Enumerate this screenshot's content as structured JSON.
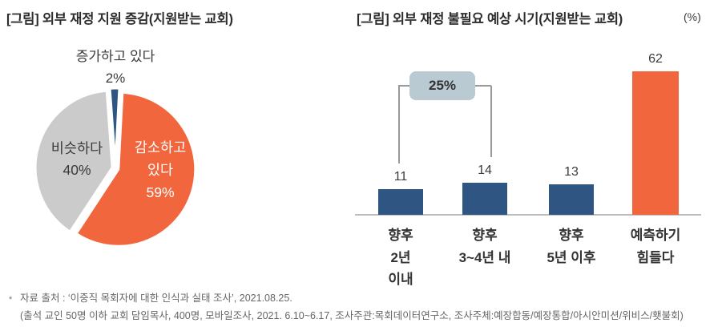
{
  "left_chart": {
    "title": "[그림] 외부 재정 지원 증감(지원받는 교회)"
  },
  "right_chart": {
    "title": "[그림] 외부 재정 불필요 예상 시기(지원받는 교회)",
    "unit_label": "(%)"
  },
  "footnote": {
    "marker": "*",
    "line1": "자료 출처 : ‘이중직 목회자에 대한 인식과 실태 조사’, 2021.08.25.",
    "line2": "(출석 교인 50명 이하 교회 담임목사, 400명, 모바일조사, 2021. 6.10~6.17, 조사주관:목회데이터연구소, 조사주체:예장합동/예장통합/아시안미션/위비스/횃불회)"
  },
  "colors": {
    "accent_orange": "#F2663E",
    "accent_navy": "#2F5583",
    "pie_gray": "#CBCBCB",
    "bracket_box": "#B9CAD3",
    "bracket_line": "#999999",
    "axis_line": "#BDBDBD",
    "title_text": "#2D2D2D",
    "body_text": "#3C3C3C",
    "footnote_text": "#666666"
  },
  "chart_data": [
    {
      "type": "pie",
      "title": "[그림] 외부 재정 지원 증감(지원받는 교회)",
      "unit": "%",
      "slices": [
        {
          "label": "감소하고 있다",
          "value": 59,
          "pct_label": "59%",
          "color": "#F2663E",
          "text_color": "#FFFFFF",
          "lines": [
            "감소하고",
            "있다",
            "59%"
          ]
        },
        {
          "label": "비슷하다",
          "value": 40,
          "pct_label": "40%",
          "color": "#CBCBCB",
          "text_color": "#3A3A3A",
          "lines": [
            "비슷하다",
            "40%"
          ]
        },
        {
          "label": "증가하고 있다",
          "value": 2,
          "pct_label": "2%",
          "color": "#2F5583",
          "text_color": "#3A3A3A",
          "lines": [
            "증가하고 있다",
            "2%"
          ]
        }
      ],
      "legend": "labels drawn on/above slices",
      "exploded": true
    },
    {
      "type": "bar",
      "title": "[그림] 외부 재정 불필요 예상 시기(지원받는 교회)",
      "unit": "(%)",
      "categories": [
        "향후 2년 이내",
        "향후 3~4년 내",
        "향후 5년 이후",
        "예측하기 힘들다"
      ],
      "category_lines": [
        [
          "향후",
          "2년",
          "이내"
        ],
        [
          "향후",
          "3~4년 내"
        ],
        [
          "향후",
          "5년 이후"
        ],
        [
          "예측하기",
          "힘들다"
        ]
      ],
      "values": [
        11,
        14,
        13,
        62
      ],
      "value_labels": [
        "11",
        "14",
        "13",
        "62"
      ],
      "bar_colors": [
        "#2F5583",
        "#2F5583",
        "#2F5583",
        "#F2663E"
      ],
      "ylim": [
        0,
        70
      ],
      "grid": false,
      "annotation": {
        "label": "25%",
        "covers": [
          "향후 2년 이내",
          "향후 3~4년 내"
        ],
        "meaning": "sum of first two bars"
      }
    }
  ]
}
